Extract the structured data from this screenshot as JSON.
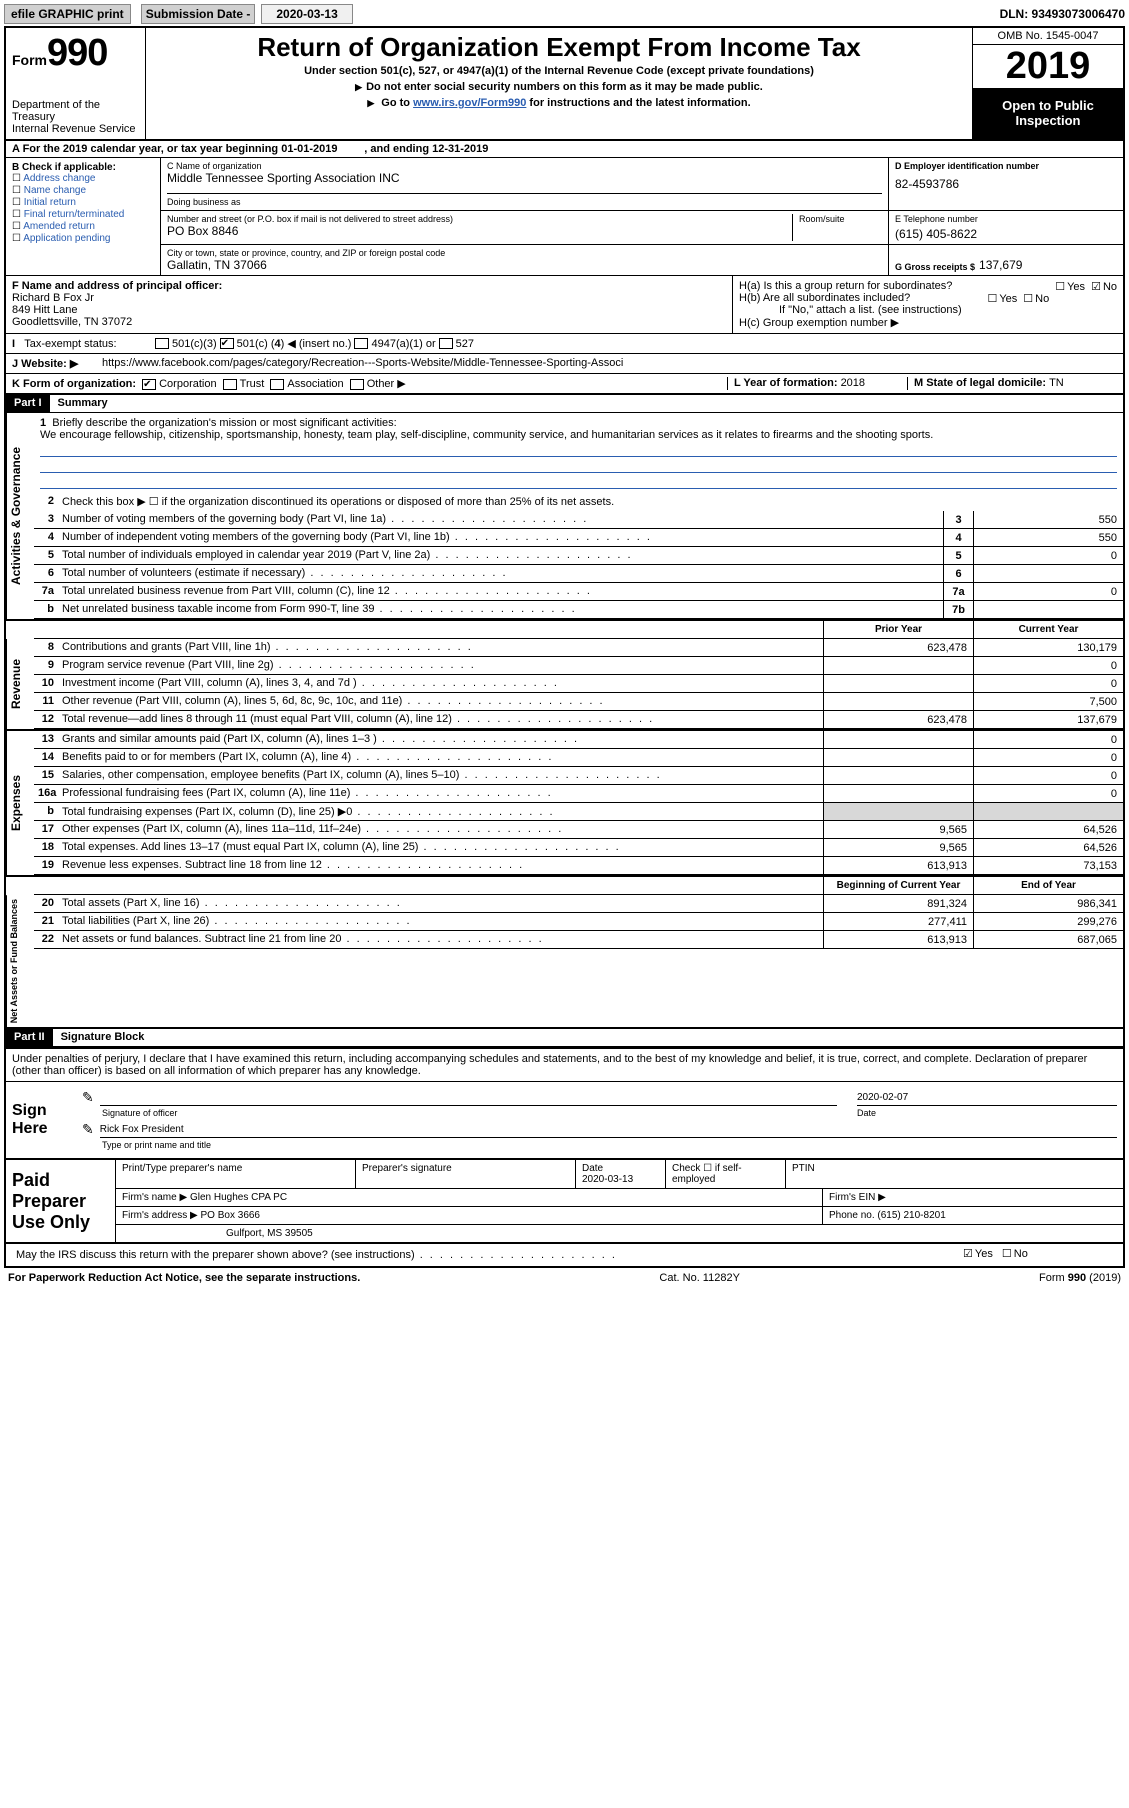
{
  "top": {
    "efile": "efile GRAPHIC print",
    "submission_label": "Submission Date - ",
    "submission_date": "2020-03-13",
    "dln": "DLN: 93493073006470"
  },
  "header": {
    "form_word": "Form",
    "form_num": "990",
    "dept": "Department of the Treasury\nInternal Revenue Service",
    "title": "Return of Organization Exempt From Income Tax",
    "sub1": "Under section 501(c), 527, or 4947(a)(1) of the Internal Revenue Code (except private foundations)",
    "sub2": "Do not enter social security numbers on this form as it may be made public.",
    "sub3a": "Go to ",
    "sub3b": "www.irs.gov/Form990",
    "sub3c": " for instructions and the latest information.",
    "omb": "OMB No. 1545-0047",
    "year": "2019",
    "inspect": "Open to Public Inspection"
  },
  "rowA": {
    "text": "A For the 2019 calendar year, or tax year beginning ",
    "begin": "01-01-2019",
    "mid": " , and ending ",
    "end": "12-31-2019"
  },
  "B": {
    "label": "B Check if applicable:",
    "opts": [
      "Address change",
      "Name change",
      "Initial return",
      "Final return/terminated",
      "Amended return",
      "Application pending"
    ]
  },
  "C": {
    "name_label": "C Name of organization",
    "name": "Middle Tennessee Sporting Association INC",
    "dba_label": "Doing business as",
    "addr_label": "Number and street (or P.O. box if mail is not delivered to street address)",
    "room_label": "Room/suite",
    "addr": "PO Box 8846",
    "city_label": "City or town, state or province, country, and ZIP or foreign postal code",
    "city": "Gallatin, TN  37066"
  },
  "D": {
    "label": "D Employer identification number",
    "val": "82-4593786"
  },
  "E": {
    "label": "E Telephone number",
    "val": "(615) 405-8622"
  },
  "G": {
    "label": "G Gross receipts $",
    "val": "137,679"
  },
  "F": {
    "label": "F Name and address of principal officer:",
    "name": "Richard B Fox Jr",
    "addr1": "849 Hitt Lane",
    "addr2": "Goodlettsville, TN  37072"
  },
  "H": {
    "a": "H(a)  Is this a group return for subordinates?",
    "b": "H(b)  Are all subordinates included?",
    "bno": "If \"No,\" attach a list. (see instructions)",
    "c": "H(c)  Group exemption number ▶",
    "yes": "Yes",
    "no": "No"
  },
  "I": {
    "label": "Tax-exempt status:",
    "o1": "501(c)(3)",
    "o2a": "501(c) ( ",
    "o2b": "4",
    "o2c": " ) ◀ (insert no.)",
    "o3": "4947(a)(1) or",
    "o4": "527"
  },
  "J": {
    "label": "J     Website: ▶",
    "url": "https://www.facebook.com/pages/category/Recreation---Sports-Website/Middle-Tennessee-Sporting-Associ"
  },
  "K": {
    "label": "K Form of organization:",
    "opts": [
      "Corporation",
      "Trust",
      "Association",
      "Other ▶"
    ],
    "L": "L Year of formation: ",
    "Lval": "2018",
    "M": "M State of legal domicile: ",
    "Mval": "TN"
  },
  "partI": {
    "tag": "Part I",
    "title": "Summary"
  },
  "vtabs": {
    "act": "Activities & Governance",
    "rev": "Revenue",
    "exp": "Expenses",
    "net": "Net Assets or Fund Balances"
  },
  "p1": {
    "q1": "Briefly describe the organization's mission or most significant activities:",
    "mission": "We encourage fellowship, citizenship, sportsmanship, honesty, team play, self-discipline, community service, and humanitarian services as it relates to firearms and the shooting sports.",
    "q2": "Check this box ▶ ☐  if the organization discontinued its operations or disposed of more than 25% of its net assets.",
    "rows_small": [
      {
        "n": "3",
        "t": "Number of voting members of the governing body (Part VI, line 1a)",
        "box": "3",
        "v": "550"
      },
      {
        "n": "4",
        "t": "Number of independent voting members of the governing body (Part VI, line 1b)",
        "box": "4",
        "v": "550"
      },
      {
        "n": "5",
        "t": "Total number of individuals employed in calendar year 2019 (Part V, line 2a)",
        "box": "5",
        "v": "0"
      },
      {
        "n": "6",
        "t": "Total number of volunteers (estimate if necessary)",
        "box": "6",
        "v": ""
      },
      {
        "n": "7a",
        "t": "Total unrelated business revenue from Part VIII, column (C), line 12",
        "box": "7a",
        "v": "0"
      },
      {
        "n": "b",
        "t": "Net unrelated business taxable income from Form 990-T, line 39",
        "box": "7b",
        "v": ""
      }
    ],
    "col_prior": "Prior Year",
    "col_curr": "Current Year",
    "rev": [
      {
        "n": "8",
        "t": "Contributions and grants (Part VIII, line 1h)",
        "p": "623,478",
        "c": "130,179"
      },
      {
        "n": "9",
        "t": "Program service revenue (Part VIII, line 2g)",
        "p": "",
        "c": "0"
      },
      {
        "n": "10",
        "t": "Investment income (Part VIII, column (A), lines 3, 4, and 7d )",
        "p": "",
        "c": "0"
      },
      {
        "n": "11",
        "t": "Other revenue (Part VIII, column (A), lines 5, 6d, 8c, 9c, 10c, and 11e)",
        "p": "",
        "c": "7,500"
      },
      {
        "n": "12",
        "t": "Total revenue—add lines 8 through 11 (must equal Part VIII, column (A), line 12)",
        "p": "623,478",
        "c": "137,679"
      }
    ],
    "exp": [
      {
        "n": "13",
        "t": "Grants and similar amounts paid (Part IX, column (A), lines 1–3 )",
        "p": "",
        "c": "0"
      },
      {
        "n": "14",
        "t": "Benefits paid to or for members (Part IX, column (A), line 4)",
        "p": "",
        "c": "0"
      },
      {
        "n": "15",
        "t": "Salaries, other compensation, employee benefits (Part IX, column (A), lines 5–10)",
        "p": "",
        "c": "0"
      },
      {
        "n": "16a",
        "t": "Professional fundraising fees (Part IX, column (A), line 11e)",
        "p": "",
        "c": "0"
      },
      {
        "n": "b",
        "t": "Total fundraising expenses (Part IX, column (D), line 25) ▶0",
        "p": "GREY",
        "c": "GREY"
      },
      {
        "n": "17",
        "t": "Other expenses (Part IX, column (A), lines 11a–11d, 11f–24e)",
        "p": "9,565",
        "c": "64,526"
      },
      {
        "n": "18",
        "t": "Total expenses. Add lines 13–17 (must equal Part IX, column (A), line 25)",
        "p": "9,565",
        "c": "64,526"
      },
      {
        "n": "19",
        "t": "Revenue less expenses. Subtract line 18 from line 12",
        "p": "613,913",
        "c": "73,153"
      }
    ],
    "col_begin": "Beginning of Current Year",
    "col_end": "End of Year",
    "net": [
      {
        "n": "20",
        "t": "Total assets (Part X, line 16)",
        "p": "891,324",
        "c": "986,341"
      },
      {
        "n": "21",
        "t": "Total liabilities (Part X, line 26)",
        "p": "277,411",
        "c": "299,276"
      },
      {
        "n": "22",
        "t": "Net assets or fund balances. Subtract line 21 from line 20",
        "p": "613,913",
        "c": "687,065"
      }
    ]
  },
  "partII": {
    "tag": "Part II",
    "title": "Signature Block"
  },
  "sig": {
    "intro": "Under penalties of perjury, I declare that I have examined this return, including accompanying schedules and statements, and to the best of my knowledge and belief, it is true, correct, and complete. Declaration of preparer (other than officer) is based on all information of which preparer has any knowledge.",
    "here": "Sign Here",
    "off_label": "Signature of officer",
    "date_label": "Date",
    "date": "2020-02-07",
    "name": "Rick Fox  President",
    "name_label": "Type or print name and title"
  },
  "prep": {
    "title": "Paid Preparer Use Only",
    "r1": {
      "a": "Print/Type preparer's name",
      "b": "Preparer's signature",
      "c": "Date",
      "cv": "2020-03-13",
      "d": "Check ☐ if self-employed",
      "e": "PTIN"
    },
    "r2": {
      "a": "Firm's name     ▶",
      "av": "Glen Hughes CPA PC",
      "b": "Firm's EIN ▶"
    },
    "r3": {
      "a": "Firm's address ▶",
      "av": "PO Box 3666",
      "b": "Phone no. (615) 210-8201"
    },
    "r3b": "Gulfport, MS  39505"
  },
  "discuss": {
    "q": "May the IRS discuss this return with the preparer shown above? (see instructions)",
    "yes": "Yes",
    "no": "No"
  },
  "footer": {
    "l": "For Paperwork Reduction Act Notice, see the separate instructions.",
    "m": "Cat. No. 11282Y",
    "r": "Form 990 (2019)"
  }
}
